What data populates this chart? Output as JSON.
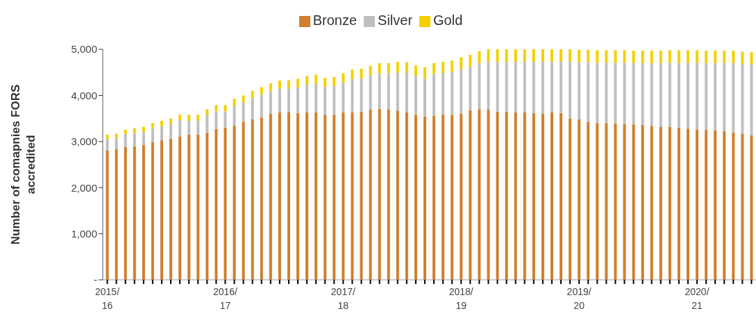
{
  "chart_data": {
    "type": "bar",
    "stacked": true,
    "ylabel": "Number of comapnies FORS accredited",
    "legend": "top",
    "categories": [
      "2015/\n16",
      null,
      null,
      null,
      null,
      null,
      null,
      null,
      null,
      null,
      null,
      null,
      null,
      "2016/\n17",
      null,
      null,
      null,
      null,
      null,
      null,
      null,
      null,
      null,
      null,
      null,
      null,
      "2017/\n18",
      null,
      null,
      null,
      null,
      null,
      null,
      null,
      null,
      null,
      null,
      null,
      null,
      "2018/\n19",
      null,
      null,
      null,
      null,
      null,
      null,
      null,
      null,
      null,
      null,
      null,
      null,
      "2019/\n20",
      null,
      null,
      null,
      null,
      null,
      null,
      null,
      null,
      null,
      null,
      null,
      null,
      "2020/\n21",
      null,
      null,
      null,
      null,
      null,
      null
    ],
    "series": [
      {
        "name": "Bronze",
        "color": "#d07f2c",
        "values": [
          2810,
          2830,
          2880,
          2900,
          2920,
          2990,
          3030,
          3060,
          3110,
          3150,
          3150,
          3190,
          3270,
          3300,
          3350,
          3430,
          3480,
          3520,
          3600,
          3630,
          3640,
          3620,
          3630,
          3630,
          3580,
          3580,
          3630,
          3630,
          3650,
          3690,
          3710,
          3690,
          3670,
          3630,
          3580,
          3540,
          3560,
          3580,
          3580,
          3600,
          3680,
          3700,
          3690,
          3650,
          3650,
          3630,
          3630,
          3620,
          3600,
          3630,
          3620,
          3500,
          3480,
          3420,
          3400,
          3400,
          3390,
          3380,
          3370,
          3360,
          3340,
          3320,
          3320,
          3300,
          3280,
          3260,
          3260,
          3240,
          3230,
          3200,
          3170,
          3140
        ]
      },
      {
        "name": "Silver",
        "color": "#bfbfbf",
        "values": [
          240,
          240,
          280,
          280,
          290,
          300,
          300,
          320,
          350,
          300,
          300,
          380,
          380,
          350,
          430,
          420,
          460,
          500,
          490,
          520,
          510,
          560,
          600,
          630,
          610,
          620,
          650,
          730,
          720,
          740,
          770,
          790,
          830,
          860,
          840,
          830,
          900,
          910,
          930,
          980,
          940,
          1000,
          1040,
          1080,
          1080,
          1100,
          1100,
          1110,
          1130,
          1100,
          1110,
          1230,
          1240,
          1300,
          1310,
          1310,
          1320,
          1330,
          1330,
          1340,
          1360,
          1380,
          1390,
          1410,
          1430,
          1450,
          1440,
          1460,
          1470,
          1500,
          1510,
          1530
        ]
      },
      {
        "name": "Gold",
        "color": "#f5d000",
        "values": [
          100,
          100,
          100,
          110,
          110,
          110,
          120,
          120,
          120,
          130,
          130,
          130,
          140,
          140,
          150,
          150,
          160,
          160,
          170,
          170,
          180,
          180,
          190,
          190,
          190,
          200,
          200,
          200,
          210,
          210,
          220,
          220,
          230,
          230,
          230,
          240,
          240,
          240,
          250,
          250,
          260,
          260,
          270,
          270,
          270,
          270,
          270,
          270,
          270,
          270,
          270,
          270,
          270,
          270,
          270,
          270,
          270,
          270,
          270,
          270,
          270,
          270,
          270,
          270,
          270,
          270,
          270,
          270,
          270,
          270,
          270,
          270
        ]
      }
    ],
    "ylim": [
      0,
      5000
    ],
    "yticks": [
      {
        "value": 0,
        "label": "-"
      },
      {
        "value": 1000,
        "label": "1,000"
      },
      {
        "value": 2000,
        "label": "2,000"
      },
      {
        "value": 3000,
        "label": "3,000"
      },
      {
        "value": 4000,
        "label": "4,000"
      },
      {
        "value": 5000,
        "label": "5,000"
      }
    ]
  }
}
